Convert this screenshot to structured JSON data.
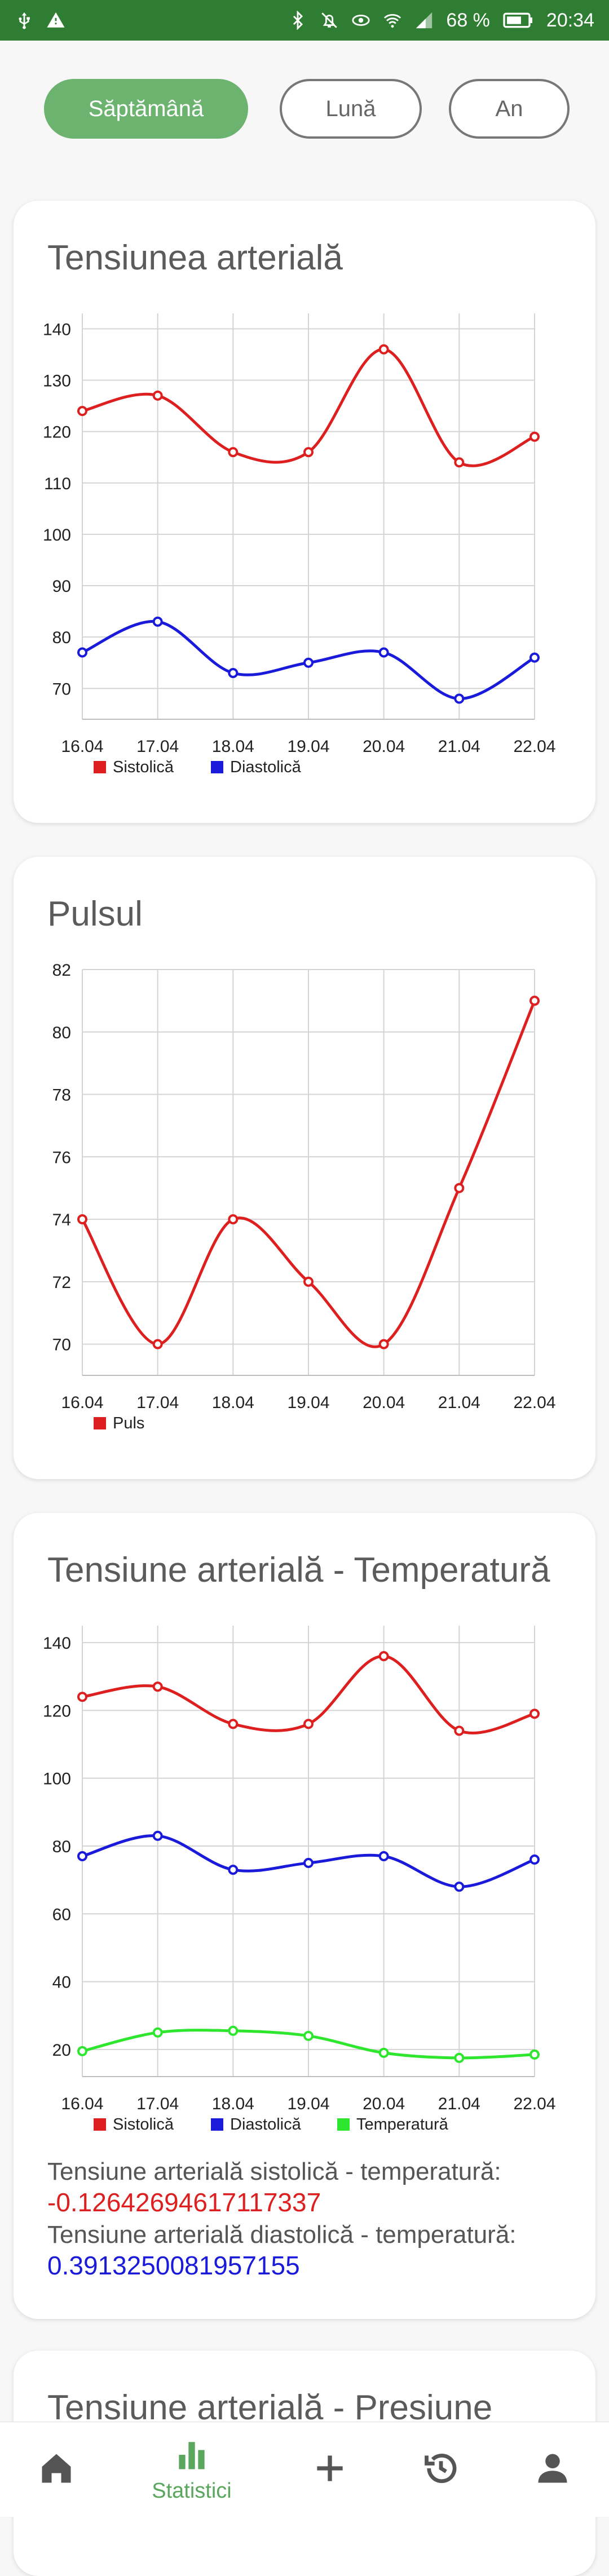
{
  "status_bar": {
    "battery": "68 %",
    "time": "20:34"
  },
  "filters": {
    "week": "Săptămână",
    "month": "Lună",
    "year": "An"
  },
  "cards": {
    "bp": {
      "title": "Tensiunea arterială"
    },
    "pulse": {
      "title": "Pulsul"
    },
    "bp_temp": {
      "title": "Tensiune arterială - Temperatură",
      "corr_sys_label": "Tensiune arterială sistolică - temperatură:",
      "corr_sys_value": "-0.12642694617117337",
      "corr_dia_label": "Tensiune arterială diastolică - temperatură:",
      "corr_dia_value": "0.3913250081957155"
    },
    "bp_pressure": {
      "title": "Tensiune arterială - Presiune"
    }
  },
  "nav": {
    "stats_label": "Statistici"
  },
  "colors": {
    "red": "#dd1f1f",
    "blue": "#1a1adb",
    "green": "#2ee62e",
    "accent": "#6cb36f"
  },
  "chart_data": [
    {
      "type": "line",
      "categories": [
        "16.04",
        "17.04",
        "18.04",
        "19.04",
        "20.04",
        "21.04",
        "22.04"
      ],
      "series": [
        {
          "name": "Sistolică",
          "values": [
            124,
            127,
            116,
            116,
            136,
            114,
            119
          ]
        },
        {
          "name": "Diastolică",
          "values": [
            77,
            83,
            73,
            75,
            77,
            68,
            76
          ]
        }
      ],
      "yticks": [
        70,
        80,
        90,
        100,
        110,
        120,
        130,
        140
      ],
      "ylim": [
        64,
        143
      ],
      "grid": true,
      "legend": "bottom-left"
    },
    {
      "type": "line",
      "categories": [
        "16.04",
        "17.04",
        "18.04",
        "19.04",
        "20.04",
        "21.04",
        "22.04"
      ],
      "series": [
        {
          "name": "Puls",
          "values": [
            74,
            70,
            74,
            72,
            70,
            75,
            81
          ]
        }
      ],
      "yticks": [
        70,
        72,
        74,
        76,
        78,
        80,
        82
      ],
      "ylim": [
        69,
        82
      ],
      "grid": true,
      "legend": "bottom-left"
    },
    {
      "type": "line",
      "categories": [
        "16.04",
        "17.04",
        "18.04",
        "19.04",
        "20.04",
        "21.04",
        "22.04"
      ],
      "series": [
        {
          "name": "Sistolică",
          "values": [
            124,
            127,
            116,
            116,
            136,
            114,
            119
          ]
        },
        {
          "name": "Diastolică",
          "values": [
            77,
            83,
            73,
            75,
            77,
            68,
            76
          ]
        },
        {
          "name": "Temperatură",
          "values": [
            19.5,
            25,
            25.5,
            24,
            19,
            17.5,
            18.5
          ]
        }
      ],
      "yticks": [
        20,
        40,
        60,
        80,
        100,
        120,
        140
      ],
      "ylim": [
        12,
        145
      ],
      "grid": true,
      "legend": "bottom-left"
    }
  ]
}
